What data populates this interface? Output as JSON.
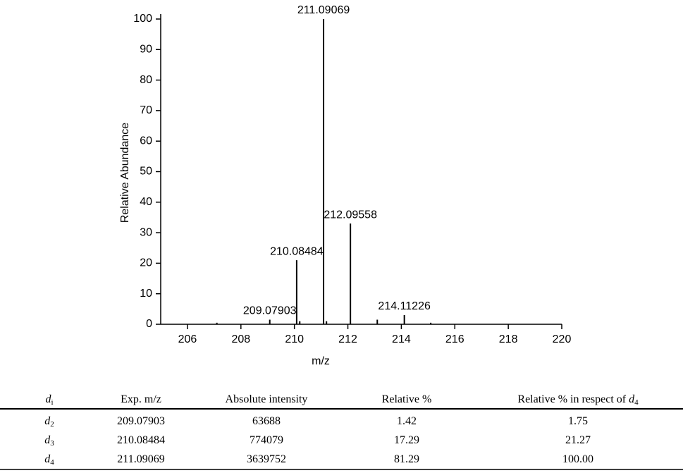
{
  "chart_data": {
    "type": "stem",
    "ylabel": "Relative Abundance",
    "xlabel": "m/z",
    "x": [
      207.1,
      209.07903,
      210.08484,
      210.2,
      211.09069,
      211.2,
      212.09558,
      213.1,
      214.11226,
      215.1
    ],
    "values": [
      0.5,
      1.5,
      21,
      1,
      100,
      1,
      33,
      1.5,
      3,
      0.5
    ],
    "peak_labels": [
      null,
      "209.07903",
      "210.08484",
      null,
      "211.09069",
      null,
      "212.09558",
      null,
      "214.11226",
      null
    ],
    "color": "#000000",
    "xlim": [
      205,
      220
    ],
    "xticks": [
      206,
      208,
      210,
      212,
      214,
      216,
      218,
      220
    ],
    "ylim": [
      0,
      100
    ],
    "yticks": [
      0,
      10,
      20,
      30,
      40,
      50,
      60,
      70,
      80,
      90,
      100
    ]
  },
  "table": {
    "header": [
      {
        "var": "d",
        "sub": "i"
      },
      {
        "text": "Exp. m/z"
      },
      {
        "text": "Absolute intensity"
      },
      {
        "text": "Relative %"
      },
      {
        "text": "Relative % in respect of ",
        "var": "d",
        "sub": "4"
      }
    ],
    "rows": [
      [
        {
          "var": "d",
          "sub": "2"
        },
        {
          "text": "209.07903"
        },
        {
          "text": "63688"
        },
        {
          "text": "1.42"
        },
        {
          "text": "1.75"
        }
      ],
      [
        {
          "var": "d",
          "sub": "3"
        },
        {
          "text": "210.08484"
        },
        {
          "text": "774079"
        },
        {
          "text": "17.29"
        },
        {
          "text": "21.27"
        }
      ],
      [
        {
          "var": "d",
          "sub": "4"
        },
        {
          "text": "211.09069"
        },
        {
          "text": "3639752"
        },
        {
          "text": "81.29"
        },
        {
          "text": "100.00"
        }
      ]
    ]
  }
}
